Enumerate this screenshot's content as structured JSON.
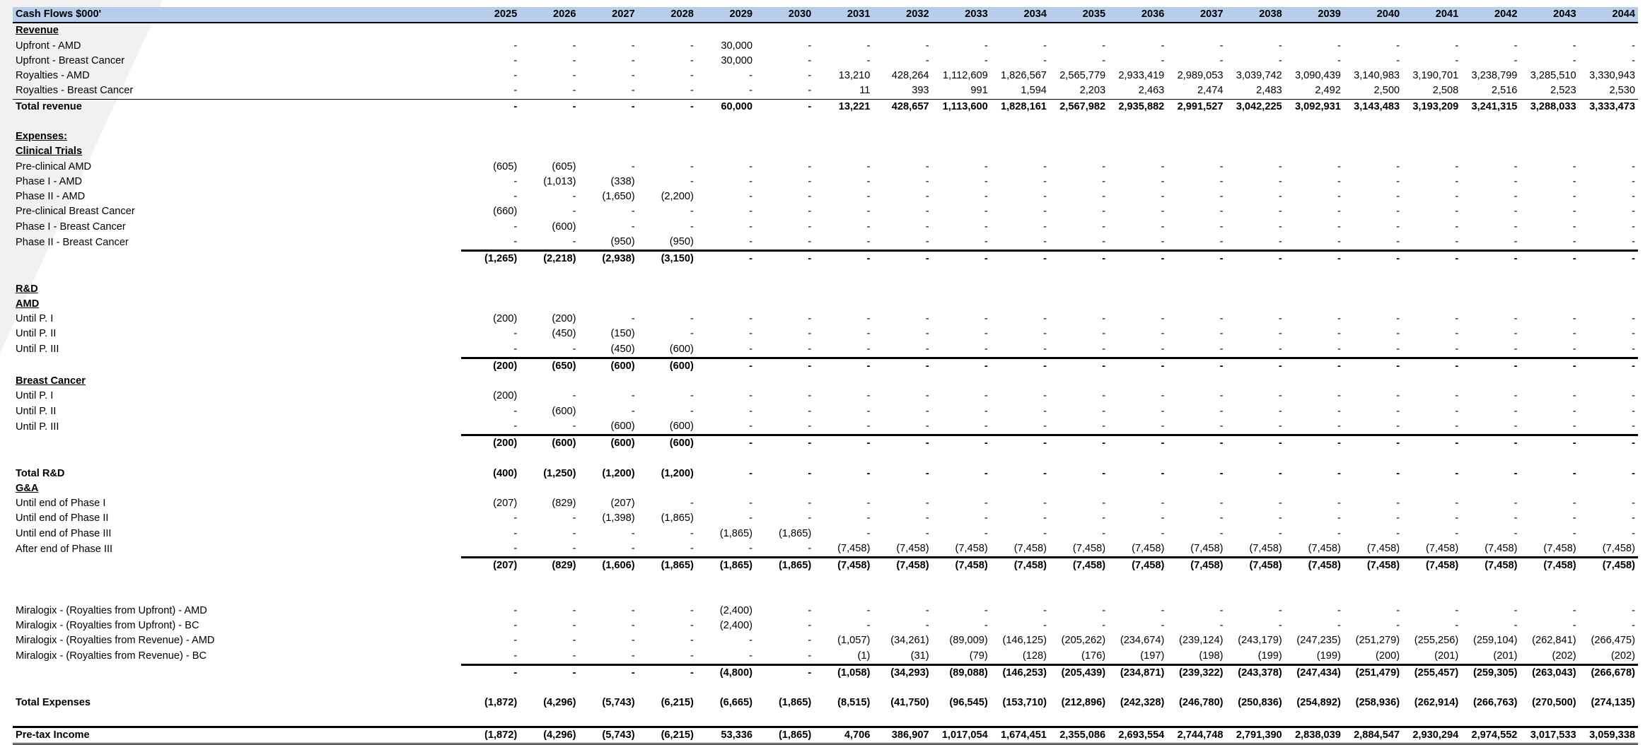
{
  "sheet": {
    "title": "Cash Flows $000'",
    "years": [
      "2025",
      "2026",
      "2027",
      "2028",
      "2029",
      "2030",
      "2031",
      "2032",
      "2033",
      "2034",
      "2035",
      "2036",
      "2037",
      "2038",
      "2039",
      "2040",
      "2041",
      "2042",
      "2043",
      "2044"
    ]
  },
  "rows": [
    {
      "type": "section",
      "label": "Revenue",
      "values": []
    },
    {
      "type": "item",
      "label": "Upfront - AMD",
      "values": [
        "-",
        "-",
        "-",
        "-",
        "30,000",
        "-",
        "-",
        "-",
        "-",
        "-",
        "-",
        "-",
        "-",
        "-",
        "-",
        "-",
        "-",
        "-",
        "-",
        "-"
      ]
    },
    {
      "type": "item",
      "label": "Upfront - Breast Cancer",
      "values": [
        "-",
        "-",
        "-",
        "-",
        "30,000",
        "-",
        "-",
        "-",
        "-",
        "-",
        "-",
        "-",
        "-",
        "-",
        "-",
        "-",
        "-",
        "-",
        "-",
        "-"
      ]
    },
    {
      "type": "item",
      "label": "Royalties - AMD",
      "values": [
        "-",
        "-",
        "-",
        "-",
        "-",
        "-",
        "13,210",
        "428,264",
        "1,112,609",
        "1,826,567",
        "2,565,779",
        "2,933,419",
        "2,989,053",
        "3,039,742",
        "3,090,439",
        "3,140,983",
        "3,190,701",
        "3,238,799",
        "3,285,510",
        "3,330,943"
      ]
    },
    {
      "type": "item",
      "label": "Royalties - Breast Cancer",
      "values": [
        "-",
        "-",
        "-",
        "-",
        "-",
        "-",
        "11",
        "393",
        "991",
        "1,594",
        "2,203",
        "2,463",
        "2,474",
        "2,483",
        "2,492",
        "2,500",
        "2,508",
        "2,516",
        "2,523",
        "2,530"
      ]
    },
    {
      "type": "totalrev",
      "label": "Total revenue",
      "values": [
        "-",
        "-",
        "-",
        "-",
        "60,000",
        "-",
        "13,221",
        "428,657",
        "1,113,600",
        "1,828,161",
        "2,567,982",
        "2,935,882",
        "2,991,527",
        "3,042,225",
        "3,092,931",
        "3,143,483",
        "3,193,209",
        "3,241,315",
        "3,288,033",
        "3,333,473"
      ]
    },
    {
      "type": "blank",
      "label": "",
      "values": []
    },
    {
      "type": "section",
      "label": "Expenses:",
      "values": []
    },
    {
      "type": "section",
      "label": "Clinical Trials",
      "values": []
    },
    {
      "type": "item",
      "label": "Pre-clinical AMD",
      "values": [
        "(605)",
        "(605)",
        "-",
        "-",
        "-",
        "-",
        "-",
        "-",
        "-",
        "-",
        "-",
        "-",
        "-",
        "-",
        "-",
        "-",
        "-",
        "-",
        "-",
        "-"
      ]
    },
    {
      "type": "item",
      "label": "Phase I - AMD",
      "values": [
        "-",
        "(1,013)",
        "(338)",
        "-",
        "-",
        "-",
        "-",
        "-",
        "-",
        "-",
        "-",
        "-",
        "-",
        "-",
        "-",
        "-",
        "-",
        "-",
        "-",
        "-"
      ]
    },
    {
      "type": "item",
      "label": "Phase II - AMD",
      "values": [
        "-",
        "-",
        "(1,650)",
        "(2,200)",
        "-",
        "-",
        "-",
        "-",
        "-",
        "-",
        "-",
        "-",
        "-",
        "-",
        "-",
        "-",
        "-",
        "-",
        "-",
        "-"
      ]
    },
    {
      "type": "item",
      "label": "Pre-clinical Breast Cancer",
      "values": [
        "(660)",
        "-",
        "-",
        "-",
        "-",
        "-",
        "-",
        "-",
        "-",
        "-",
        "-",
        "-",
        "-",
        "-",
        "-",
        "-",
        "-",
        "-",
        "-",
        "-"
      ]
    },
    {
      "type": "item",
      "label": "Phase I - Breast Cancer",
      "values": [
        "-",
        "(600)",
        "-",
        "-",
        "-",
        "-",
        "-",
        "-",
        "-",
        "-",
        "-",
        "-",
        "-",
        "-",
        "-",
        "-",
        "-",
        "-",
        "-",
        "-"
      ]
    },
    {
      "type": "item",
      "label": "Phase II - Breast Cancer",
      "values": [
        "-",
        "-",
        "(950)",
        "(950)",
        "-",
        "-",
        "-",
        "-",
        "-",
        "-",
        "-",
        "-",
        "-",
        "-",
        "-",
        "-",
        "-",
        "-",
        "-",
        "-"
      ]
    },
    {
      "type": "subtotal",
      "label": "",
      "values": [
        "(1,265)",
        "(2,218)",
        "(2,938)",
        "(3,150)",
        "-",
        "-",
        "-",
        "-",
        "-",
        "-",
        "-",
        "-",
        "-",
        "-",
        "-",
        "-",
        "-",
        "-",
        "-",
        "-"
      ]
    },
    {
      "type": "blank",
      "label": "",
      "values": []
    },
    {
      "type": "section",
      "label": "R&D",
      "values": []
    },
    {
      "type": "section",
      "label": "AMD",
      "values": []
    },
    {
      "type": "item",
      "label": "Until P. I",
      "values": [
        "(200)",
        "(200)",
        "-",
        "-",
        "-",
        "-",
        "-",
        "-",
        "-",
        "-",
        "-",
        "-",
        "-",
        "-",
        "-",
        "-",
        "-",
        "-",
        "-",
        "-"
      ]
    },
    {
      "type": "item",
      "label": "Until P. II",
      "values": [
        "-",
        "(450)",
        "(150)",
        "-",
        "-",
        "-",
        "-",
        "-",
        "-",
        "-",
        "-",
        "-",
        "-",
        "-",
        "-",
        "-",
        "-",
        "-",
        "-",
        "-"
      ]
    },
    {
      "type": "item",
      "label": "Until P. III",
      "values": [
        "-",
        "-",
        "(450)",
        "(600)",
        "-",
        "-",
        "-",
        "-",
        "-",
        "-",
        "-",
        "-",
        "-",
        "-",
        "-",
        "-",
        "-",
        "-",
        "-",
        "-"
      ]
    },
    {
      "type": "subtotal",
      "label": "",
      "values": [
        "(200)",
        "(650)",
        "(600)",
        "(600)",
        "-",
        "-",
        "-",
        "-",
        "-",
        "-",
        "-",
        "-",
        "-",
        "-",
        "-",
        "-",
        "-",
        "-",
        "-",
        "-"
      ]
    },
    {
      "type": "section",
      "label": "Breast Cancer",
      "values": []
    },
    {
      "type": "item",
      "label": "Until P. I",
      "values": [
        "(200)",
        "-",
        "-",
        "-",
        "-",
        "-",
        "-",
        "-",
        "-",
        "-",
        "-",
        "-",
        "-",
        "-",
        "-",
        "-",
        "-",
        "-",
        "-",
        "-"
      ]
    },
    {
      "type": "item",
      "label": "Until P. II",
      "values": [
        "-",
        "(600)",
        "-",
        "-",
        "-",
        "-",
        "-",
        "-",
        "-",
        "-",
        "-",
        "-",
        "-",
        "-",
        "-",
        "-",
        "-",
        "-",
        "-",
        "-"
      ]
    },
    {
      "type": "item",
      "label": "Until P. III",
      "values": [
        "-",
        "-",
        "(600)",
        "(600)",
        "-",
        "-",
        "-",
        "-",
        "-",
        "-",
        "-",
        "-",
        "-",
        "-",
        "-",
        "-",
        "-",
        "-",
        "-",
        "-"
      ]
    },
    {
      "type": "subtotal",
      "label": "",
      "values": [
        "(200)",
        "(600)",
        "(600)",
        "(600)",
        "-",
        "-",
        "-",
        "-",
        "-",
        "-",
        "-",
        "-",
        "-",
        "-",
        "-",
        "-",
        "-",
        "-",
        "-",
        "-"
      ]
    },
    {
      "type": "blank",
      "label": "",
      "values": []
    },
    {
      "type": "bold",
      "label": "Total R&D",
      "values": [
        "(400)",
        "(1,250)",
        "(1,200)",
        "(1,200)",
        "-",
        "-",
        "-",
        "-",
        "-",
        "-",
        "-",
        "-",
        "-",
        "-",
        "-",
        "-",
        "-",
        "-",
        "-",
        "-"
      ]
    },
    {
      "type": "section",
      "label": "G&A",
      "values": []
    },
    {
      "type": "item",
      "label": "Until end of Phase I",
      "values": [
        "(207)",
        "(829)",
        "(207)",
        "-",
        "-",
        "-",
        "-",
        "-",
        "-",
        "-",
        "-",
        "-",
        "-",
        "-",
        "-",
        "-",
        "-",
        "-",
        "-",
        "-"
      ]
    },
    {
      "type": "item",
      "label": "Until end of Phase II",
      "values": [
        "-",
        "-",
        "(1,398)",
        "(1,865)",
        "-",
        "-",
        "-",
        "-",
        "-",
        "-",
        "-",
        "-",
        "-",
        "-",
        "-",
        "-",
        "-",
        "-",
        "-",
        "-"
      ]
    },
    {
      "type": "item",
      "label": "Until end of Phase III",
      "values": [
        "-",
        "-",
        "-",
        "-",
        "(1,865)",
        "(1,865)",
        "-",
        "-",
        "-",
        "-",
        "-",
        "-",
        "-",
        "-",
        "-",
        "-",
        "-",
        "-",
        "-",
        "-"
      ]
    },
    {
      "type": "item",
      "label": "After end of Phase III",
      "values": [
        "-",
        "-",
        "-",
        "-",
        "-",
        "-",
        "(7,458)",
        "(7,458)",
        "(7,458)",
        "(7,458)",
        "(7,458)",
        "(7,458)",
        "(7,458)",
        "(7,458)",
        "(7,458)",
        "(7,458)",
        "(7,458)",
        "(7,458)",
        "(7,458)",
        "(7,458)"
      ]
    },
    {
      "type": "subtotal",
      "label": "",
      "values": [
        "(207)",
        "(829)",
        "(1,606)",
        "(1,865)",
        "(1,865)",
        "(1,865)",
        "(7,458)",
        "(7,458)",
        "(7,458)",
        "(7,458)",
        "(7,458)",
        "(7,458)",
        "(7,458)",
        "(7,458)",
        "(7,458)",
        "(7,458)",
        "(7,458)",
        "(7,458)",
        "(7,458)",
        "(7,458)"
      ]
    },
    {
      "type": "blank",
      "label": "",
      "values": []
    },
    {
      "type": "blank",
      "label": "",
      "values": []
    },
    {
      "type": "item",
      "label": "Miralogix -  (Royalties from Upfront) - AMD",
      "values": [
        "-",
        "-",
        "-",
        "-",
        "(2,400)",
        "-",
        "-",
        "-",
        "-",
        "-",
        "-",
        "-",
        "-",
        "-",
        "-",
        "-",
        "-",
        "-",
        "-",
        "-"
      ]
    },
    {
      "type": "item",
      "label": "Miralogix -  (Royalties from Upfront) - BC",
      "values": [
        "-",
        "-",
        "-",
        "-",
        "(2,400)",
        "-",
        "-",
        "-",
        "-",
        "-",
        "-",
        "-",
        "-",
        "-",
        "-",
        "-",
        "-",
        "-",
        "-",
        "-"
      ]
    },
    {
      "type": "item",
      "label": "Miralogix -  (Royalties from Revenue) - AMD",
      "values": [
        "-",
        "-",
        "-",
        "-",
        "-",
        "-",
        "(1,057)",
        "(34,261)",
        "(89,009)",
        "(146,125)",
        "(205,262)",
        "(234,674)",
        "(239,124)",
        "(243,179)",
        "(247,235)",
        "(251,279)",
        "(255,256)",
        "(259,104)",
        "(262,841)",
        "(266,475)"
      ]
    },
    {
      "type": "item",
      "label": "Miralogix -  (Royalties from Revenue) - BC",
      "values": [
        "-",
        "-",
        "-",
        "-",
        "-",
        "-",
        "(1)",
        "(31)",
        "(79)",
        "(128)",
        "(176)",
        "(197)",
        "(198)",
        "(199)",
        "(199)",
        "(200)",
        "(201)",
        "(201)",
        "(202)",
        "(202)"
      ]
    },
    {
      "type": "subtotal",
      "label": "",
      "values": [
        "-",
        "-",
        "-",
        "-",
        "(4,800)",
        "-",
        "(1,058)",
        "(34,293)",
        "(89,088)",
        "(146,253)",
        "(205,439)",
        "(234,871)",
        "(239,322)",
        "(243,378)",
        "(247,434)",
        "(251,479)",
        "(255,457)",
        "(259,305)",
        "(263,043)",
        "(266,678)"
      ]
    },
    {
      "type": "blank",
      "label": "",
      "values": []
    },
    {
      "type": "bold",
      "label": "Total Expenses",
      "values": [
        "(1,872)",
        "(4,296)",
        "(5,743)",
        "(6,215)",
        "(6,665)",
        "(1,865)",
        "(8,515)",
        "(41,750)",
        "(96,545)",
        "(153,710)",
        "(212,896)",
        "(242,328)",
        "(246,780)",
        "(250,836)",
        "(254,892)",
        "(258,936)",
        "(262,914)",
        "(266,763)",
        "(270,500)",
        "(274,135)"
      ]
    },
    {
      "type": "blank",
      "label": "",
      "values": []
    },
    {
      "type": "final",
      "label": "Pre-tax Income",
      "values": [
        "(1,872)",
        "(4,296)",
        "(5,743)",
        "(6,215)",
        "53,336",
        "(1,865)",
        "4,706",
        "386,907",
        "1,017,054",
        "1,674,451",
        "2,355,086",
        "2,693,554",
        "2,744,748",
        "2,791,390",
        "2,838,039",
        "2,884,547",
        "2,930,294",
        "2,974,552",
        "3,017,533",
        "3,059,338"
      ]
    }
  ]
}
